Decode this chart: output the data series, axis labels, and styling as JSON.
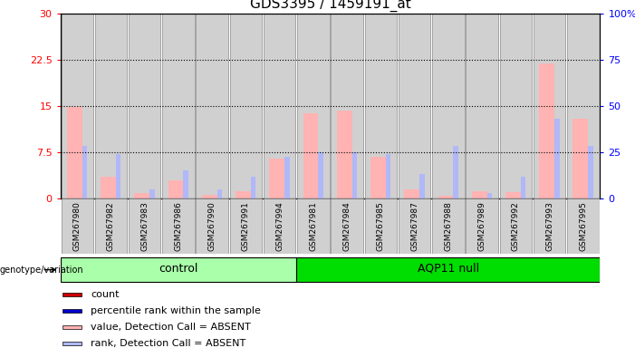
{
  "title": "GDS3395 / 1459191_at",
  "samples": [
    "GSM267980",
    "GSM267982",
    "GSM267983",
    "GSM267986",
    "GSM267990",
    "GSM267991",
    "GSM267994",
    "GSM267981",
    "GSM267984",
    "GSM267985",
    "GSM267987",
    "GSM267988",
    "GSM267989",
    "GSM267992",
    "GSM267993",
    "GSM267995"
  ],
  "group_control_count": 7,
  "group_aqp11_count": 9,
  "value_absent": [
    14.8,
    3.5,
    0.8,
    3.0,
    0.6,
    1.2,
    6.5,
    13.8,
    14.3,
    6.8,
    1.5,
    0.4,
    1.1,
    1.0,
    22.0,
    13.0
  ],
  "rank_absent": [
    8.5,
    7.2,
    1.5,
    4.5,
    1.5,
    3.5,
    6.8,
    7.5,
    7.5,
    7.2,
    4.0,
    8.5,
    0.8,
    3.5,
    13.0,
    8.5
  ],
  "ylim_left": [
    0,
    30
  ],
  "ylim_right": [
    0,
    100
  ],
  "yticks_left": [
    0,
    7.5,
    15,
    22.5,
    30
  ],
  "yticks_right": [
    0,
    25,
    50,
    75,
    100
  ],
  "ytick_labels_left": [
    "0",
    "7.5",
    "15",
    "22.5",
    "30"
  ],
  "ytick_labels_right": [
    "0",
    "25",
    "50",
    "75",
    "100%"
  ],
  "color_value_absent": "#ffb3b3",
  "color_rank_absent": "#b0b8f8",
  "color_count": "#cc0000",
  "color_rank": "#0000cc",
  "bar_bg_color": "#d0d0d0",
  "group_color_control": "#aaffaa",
  "group_color_aqp11": "#00dd00",
  "group_label_control": "control",
  "group_label_aqp11": "AQP11 null",
  "genotype_label": "genotype/variation"
}
